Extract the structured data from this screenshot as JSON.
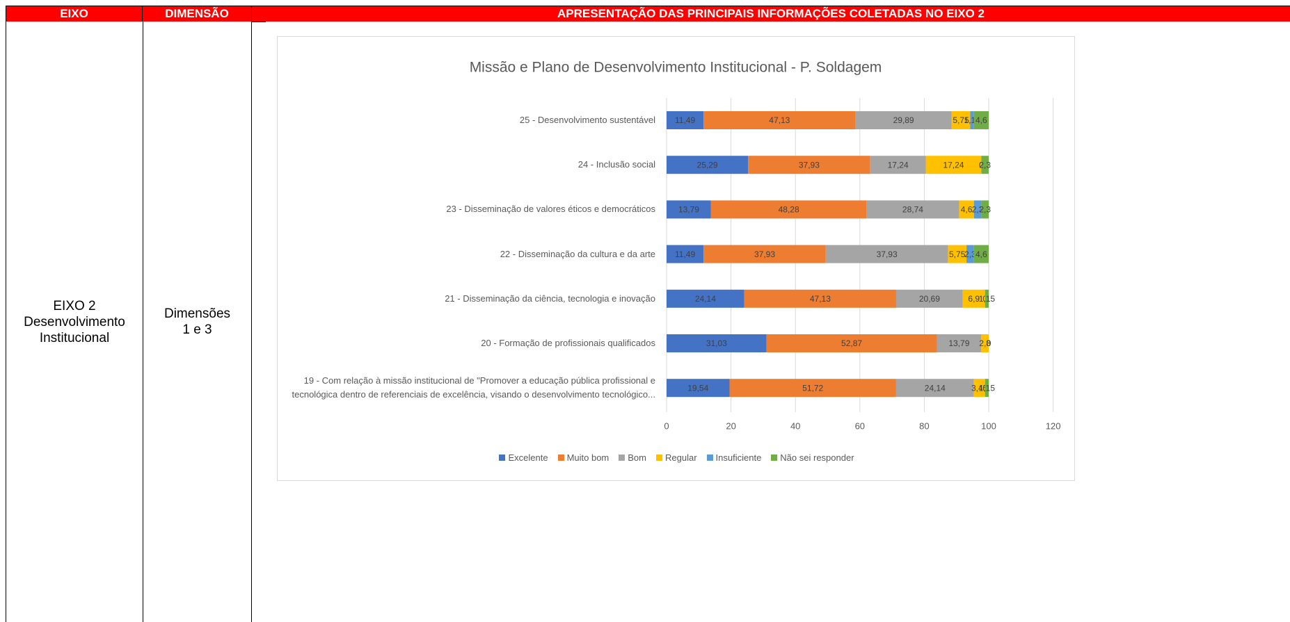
{
  "table": {
    "headers": [
      "EIXO",
      "DIMENSÃO",
      "APRESENTAÇÃO DAS PRINCIPAIS INFORMAÇÕES COLETADAS NO EIXO 2"
    ],
    "eixo": [
      "EIXO 2",
      "Desenvolvimento",
      "Institucional"
    ],
    "dimensao": [
      "Dimensões",
      "1 e 3"
    ]
  },
  "chart_data": {
    "type": "stacked_barh",
    "title": "Missão e Plano de Desenvolvimento Institucional - P. Soldagem",
    "categories": [
      "25 - Desenvolvimento sustentável",
      "24 - Inclusão social",
      "23 - Disseminação de valores éticos e democráticos",
      "22 - Disseminação da cultura e da arte",
      "21 - Disseminação da ciência, tecnologia e inovação",
      "20 - Formação de profissionais qualificados",
      "19 - Com relação à missão institucional de \"Promover a educação pública profissional e tecnológica dentro de referenciais de excelência, visando o desenvolvimento tecnológico..."
    ],
    "series": [
      {
        "name": "Excelente",
        "color": "#4472c4",
        "values": [
          11.49,
          25.29,
          13.79,
          11.49,
          24.14,
          31.03,
          19.54
        ],
        "value_labels": [
          "11,49",
          "25,29",
          "13,79",
          "11,49",
          "24,14",
          "31,03",
          "19,54"
        ]
      },
      {
        "name": "Muito bom",
        "color": "#ed7d31",
        "values": [
          47.13,
          37.93,
          48.28,
          37.93,
          47.13,
          52.87,
          51.72
        ],
        "value_labels": [
          "47,13",
          "37,93",
          "48,28",
          "37,93",
          "47,13",
          "52,87",
          "51,72"
        ]
      },
      {
        "name": "Bom",
        "color": "#a5a5a5",
        "values": [
          29.89,
          17.24,
          28.74,
          37.93,
          20.69,
          13.79,
          24.14
        ],
        "value_labels": [
          "29,89",
          "17,24",
          "28,74",
          "37,93",
          "20,69",
          "13,79",
          "24,14"
        ]
      },
      {
        "name": "Regular",
        "color": "#ffc000",
        "values": [
          5.75,
          17.24,
          4.6,
          5.75,
          6.9,
          2.3,
          3.45
        ],
        "value_labels": [
          "5,75",
          "17,24",
          "4,6",
          "5,75",
          "6,9",
          "2,3",
          "3,45"
        ]
      },
      {
        "name": "Insuficiente",
        "color": "#5b9bd5",
        "values": [
          1.15,
          0,
          2.3,
          2.3,
          0,
          0,
          0
        ],
        "value_labels": [
          "1,15",
          "0",
          "2,3",
          "2,3",
          "0",
          "0",
          "0"
        ]
      },
      {
        "name": "Não sei responder",
        "color": "#70ad47",
        "values": [
          4.6,
          2.3,
          2.3,
          4.6,
          1.15,
          0,
          1.15
        ],
        "value_labels": [
          "4,6",
          "2,3",
          "2,3",
          "4,6",
          "1,15",
          "0",
          "1,15"
        ]
      }
    ],
    "xlim": [
      0,
      120
    ],
    "xticks": [
      0,
      20,
      40,
      60,
      80,
      100,
      120
    ],
    "grid": true,
    "legend": "bottom"
  }
}
